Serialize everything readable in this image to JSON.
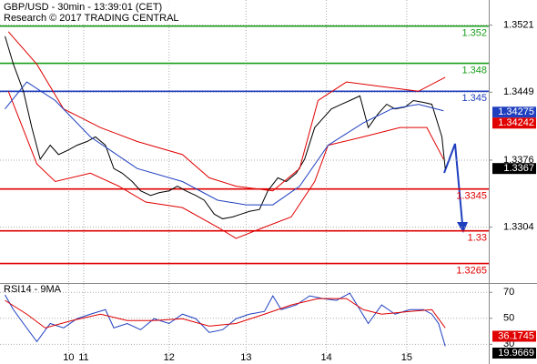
{
  "chart_data": [
    {
      "type": "line",
      "title": "GBP/USD - 30min - 13:39:01 (CET)",
      "subtitle": "Research © 2017 TRADING CENTRAL",
      "xlim": [
        0,
        292
      ],
      "xticks": [
        {
          "value": 41,
          "label": "10"
        },
        {
          "value": 50,
          "label": "11"
        },
        {
          "value": 101,
          "label": "12"
        },
        {
          "value": 147,
          "label": "13"
        },
        {
          "value": 195,
          "label": "14"
        },
        {
          "value": 243,
          "label": "15"
        }
      ],
      "ylim": [
        1.3245,
        1.3548
      ],
      "yticks": [
        1.3521,
        1.3449,
        1.3376,
        1.3304
      ],
      "grid": true,
      "series": [
        {
          "color": "#000000",
          "x": [
            3,
            8,
            14,
            19,
            24,
            30,
            35,
            41,
            46,
            52,
            57,
            63,
            68,
            73,
            79,
            84,
            90,
            95,
            101,
            106,
            111,
            117,
            122,
            128,
            133,
            139,
            144,
            149,
            155,
            160,
            166,
            171,
            177,
            182,
            188,
            193,
            198,
            204,
            209,
            215,
            220,
            226,
            231,
            236,
            242,
            247,
            253,
            258,
            264,
            266
          ],
          "values": [
            1.3509,
            1.3479,
            1.345,
            1.3411,
            1.3377,
            1.3392,
            1.3382,
            1.3387,
            1.3392,
            1.3396,
            1.3401,
            1.3392,
            1.3367,
            1.3362,
            1.3353,
            1.3343,
            1.3338,
            1.3341,
            1.3343,
            1.3348,
            1.3343,
            1.3338,
            1.3333,
            1.3318,
            1.3313,
            1.3315,
            1.3318,
            1.3321,
            1.3323,
            1.3343,
            1.3357,
            1.3353,
            1.3362,
            1.3377,
            1.3411,
            1.3421,
            1.3431,
            1.3436,
            1.344,
            1.3445,
            1.3411,
            1.3426,
            1.3436,
            1.3431,
            1.3433,
            1.344,
            1.3438,
            1.3436,
            1.3401,
            1.3367
          ]
        },
        {
          "color": "#e00000",
          "x": [
            5,
            22,
            38,
            60,
            82,
            109,
            125,
            141,
            163,
            179,
            190,
            207,
            228,
            250,
            266
          ],
          "values": [
            1.3514,
            1.3479,
            1.3431,
            1.3411,
            1.3396,
            1.3382,
            1.3357,
            1.3348,
            1.3343,
            1.3367,
            1.344,
            1.346,
            1.3455,
            1.345,
            1.3465
          ]
        },
        {
          "color": "#e00000",
          "x": [
            5,
            22,
            33,
            54,
            71,
            87,
            109,
            130,
            141,
            158,
            174,
            188,
            196,
            217,
            239,
            255,
            265
          ],
          "values": [
            1.345,
            1.3372,
            1.3353,
            1.3362,
            1.3348,
            1.3331,
            1.3325,
            1.3304,
            1.3292,
            1.3304,
            1.3315,
            1.3353,
            1.3392,
            1.3401,
            1.3411,
            1.3411,
            1.3377
          ]
        },
        {
          "color": "#1f3fbf",
          "x": [
            3,
            16,
            33,
            54,
            82,
            109,
            130,
            147,
            163,
            179,
            196,
            217,
            234,
            250,
            265
          ],
          "values": [
            1.3431,
            1.346,
            1.344,
            1.3401,
            1.3367,
            1.3353,
            1.3333,
            1.3328,
            1.3328,
            1.3348,
            1.3392,
            1.3416,
            1.3431,
            1.3436,
            1.3429
          ]
        }
      ],
      "levels": [
        {
          "value": 1.352,
          "color": "#1a9e1a"
        },
        {
          "value": 1.348,
          "color": "#1a9e1a"
        },
        {
          "value": 1.345,
          "color": "#1f3fbf"
        },
        {
          "value": 1.3345,
          "color": "#e00000"
        },
        {
          "value": 1.33,
          "color": "#e00000"
        },
        {
          "value": 1.3265,
          "color": "#e00000"
        }
      ],
      "markers": [
        {
          "value": 1.34275,
          "color": "#1f3fbf"
        },
        {
          "value": 1.34242,
          "color": "#e00000"
        },
        {
          "value": 1.3367,
          "color": "#000000"
        }
      ]
    },
    {
      "type": "line",
      "title": "RSI14 - 9MA",
      "xlim": [
        0,
        292
      ],
      "ylim": [
        19,
        76.5
      ],
      "yticks": [
        70,
        50,
        30
      ],
      "series": [
        {
          "color": "#1f3fbf",
          "x": [
            3,
            8,
            14,
            22,
            30,
            38,
            46,
            54,
            63,
            68,
            76,
            84,
            92,
            101,
            109,
            117,
            125,
            133,
            141,
            149,
            158,
            163,
            168,
            177,
            185,
            193,
            201,
            209,
            215,
            220,
            228,
            236,
            245,
            253,
            258,
            262,
            266
          ],
          "values": [
            68,
            56.7,
            46,
            32,
            46,
            42.6,
            49.7,
            53.2,
            56.7,
            42.6,
            46,
            41.2,
            49.7,
            46,
            53.2,
            49.7,
            39.1,
            41.2,
            49.7,
            53.2,
            55.3,
            67.3,
            56.7,
            60.3,
            67.3,
            65.2,
            63.8,
            69.4,
            56.7,
            46,
            60.3,
            53.2,
            56.7,
            56.7,
            53.2,
            46,
            28.5
          ]
        },
        {
          "color": "#e00000",
          "x": [
            3,
            16,
            27,
            43,
            60,
            76,
            92,
            109,
            125,
            141,
            158,
            174,
            190,
            207,
            217,
            228,
            245,
            258,
            266
          ],
          "values": [
            63.8,
            53.2,
            42.6,
            48.3,
            53.2,
            48.3,
            48.3,
            49.7,
            44,
            46,
            53.2,
            60.3,
            65.2,
            65.2,
            56.7,
            53.2,
            55.3,
            56.7,
            42.6
          ]
        }
      ],
      "markers": [
        {
          "value": 36.1745,
          "color": "#e00000"
        },
        {
          "value": 19.9669,
          "color": "#000000"
        }
      ]
    }
  ]
}
